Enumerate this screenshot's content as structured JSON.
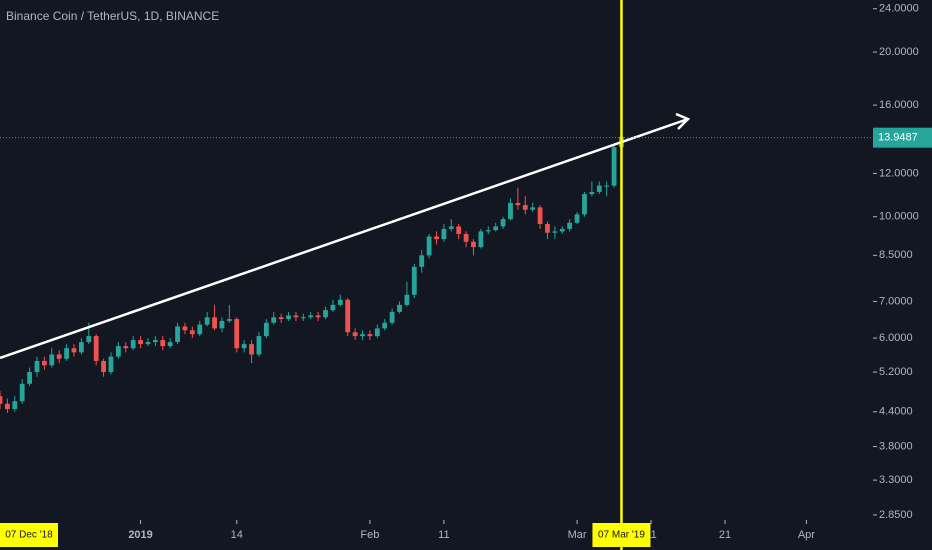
{
  "chart_data": {
    "type": "candlestick",
    "title": "Binance Coin / TetherUS, 1D, BINANCE",
    "x": [
      "2018-12-13",
      "2018-12-14",
      "2018-12-15",
      "2018-12-16",
      "2018-12-17",
      "2018-12-18",
      "2018-12-19",
      "2018-12-20",
      "2018-12-21",
      "2018-12-22",
      "2018-12-23",
      "2018-12-24",
      "2018-12-25",
      "2018-12-26",
      "2018-12-27",
      "2018-12-28",
      "2018-12-29",
      "2018-12-30",
      "2018-12-31",
      "2019-01-01",
      "2019-01-02",
      "2019-01-03",
      "2019-01-04",
      "2019-01-05",
      "2019-01-06",
      "2019-01-07",
      "2019-01-08",
      "2019-01-09",
      "2019-01-10",
      "2019-01-11",
      "2019-01-12",
      "2019-01-13",
      "2019-01-14",
      "2019-01-15",
      "2019-01-16",
      "2019-01-17",
      "2019-01-18",
      "2019-01-19",
      "2019-01-20",
      "2019-01-21",
      "2019-01-22",
      "2019-01-23",
      "2019-01-24",
      "2019-01-25",
      "2019-01-26",
      "2019-01-27",
      "2019-01-28",
      "2019-01-29",
      "2019-01-30",
      "2019-01-31",
      "2019-02-01",
      "2019-02-02",
      "2019-02-03",
      "2019-02-04",
      "2019-02-05",
      "2019-02-06",
      "2019-02-07",
      "2019-02-08",
      "2019-02-09",
      "2019-02-10",
      "2019-02-11",
      "2019-02-12",
      "2019-02-13",
      "2019-02-14",
      "2019-02-15",
      "2019-02-16",
      "2019-02-17",
      "2019-02-18",
      "2019-02-19",
      "2019-02-20",
      "2019-02-21",
      "2019-02-22",
      "2019-02-23",
      "2019-02-24",
      "2019-02-25",
      "2019-02-26",
      "2019-02-27",
      "2019-02-28",
      "2019-03-01",
      "2019-03-02",
      "2019-03-03",
      "2019-03-04",
      "2019-03-05",
      "2019-03-06",
      "2019-03-07"
    ],
    "open": [
      4.7,
      4.55,
      4.45,
      4.6,
      4.95,
      5.2,
      5.45,
      5.35,
      5.6,
      5.5,
      5.75,
      5.65,
      5.9,
      6.05,
      5.45,
      5.2,
      5.55,
      5.8,
      5.75,
      5.95,
      5.85,
      5.9,
      5.95,
      5.8,
      5.9,
      6.3,
      6.2,
      6.1,
      6.35,
      6.55,
      6.25,
      6.45,
      6.5,
      5.75,
      5.85,
      5.6,
      6.05,
      6.4,
      6.55,
      6.5,
      6.6,
      6.55,
      6.55,
      6.6,
      6.55,
      6.75,
      6.9,
      7.05,
      6.15,
      6.05,
      6.1,
      6.05,
      6.25,
      6.4,
      6.7,
      6.9,
      7.2,
      8.1,
      8.5,
      9.2,
      9.1,
      9.5,
      9.6,
      9.3,
      9.0,
      8.8,
      9.4,
      9.45,
      9.6,
      9.9,
      10.6,
      10.5,
      10.3,
      10.4,
      9.7,
      9.35,
      9.4,
      9.5,
      9.75,
      10.1,
      11.0,
      11.1,
      11.4,
      11.4,
      13.4
    ],
    "high": [
      4.8,
      4.65,
      4.7,
      5.05,
      5.3,
      5.55,
      5.55,
      5.75,
      5.7,
      5.85,
      5.85,
      6.0,
      6.4,
      6.1,
      5.5,
      5.65,
      5.9,
      5.9,
      6.05,
      6.05,
      6.0,
      6.05,
      6.05,
      6.0,
      6.4,
      6.4,
      6.3,
      6.45,
      6.7,
      6.9,
      6.55,
      6.9,
      6.55,
      5.95,
      5.95,
      6.15,
      6.5,
      6.7,
      6.65,
      6.7,
      6.7,
      6.65,
      6.7,
      6.7,
      6.85,
      7.05,
      7.2,
      7.1,
      6.25,
      6.2,
      6.2,
      6.35,
      6.5,
      6.8,
      7.0,
      7.6,
      8.2,
      8.7,
      9.3,
      9.4,
      9.7,
      9.9,
      9.7,
      9.4,
      9.1,
      9.5,
      9.6,
      9.75,
      10.0,
      10.8,
      11.3,
      10.9,
      10.6,
      10.5,
      9.8,
      9.6,
      9.6,
      9.9,
      10.2,
      11.1,
      11.6,
      11.6,
      11.6,
      13.5,
      14.2
    ],
    "low": [
      4.45,
      4.38,
      4.4,
      4.55,
      4.9,
      5.1,
      5.25,
      5.3,
      5.4,
      5.45,
      5.55,
      5.6,
      5.85,
      5.35,
      5.1,
      5.15,
      5.5,
      5.65,
      5.7,
      5.75,
      5.8,
      5.8,
      5.7,
      5.75,
      5.85,
      6.1,
      6.0,
      6.05,
      6.3,
      6.2,
      6.15,
      6.4,
      5.65,
      5.65,
      5.4,
      5.55,
      6.0,
      6.35,
      6.4,
      6.45,
      6.45,
      6.45,
      6.5,
      6.45,
      6.5,
      6.7,
      6.85,
      6.05,
      5.95,
      5.95,
      5.95,
      6.0,
      6.2,
      6.35,
      6.65,
      6.85,
      7.1,
      7.9,
      8.4,
      8.9,
      9.0,
      9.4,
      9.1,
      8.8,
      8.5,
      8.75,
      9.3,
      9.4,
      9.5,
      9.85,
      10.3,
      10.1,
      10.2,
      9.5,
      9.1,
      9.1,
      9.3,
      9.4,
      9.7,
      10.0,
      10.9,
      11.0,
      10.9,
      11.3,
      13.3
    ],
    "close": [
      4.55,
      4.45,
      4.6,
      4.95,
      5.2,
      5.45,
      5.35,
      5.6,
      5.5,
      5.75,
      5.65,
      5.9,
      6.05,
      5.45,
      5.2,
      5.55,
      5.8,
      5.75,
      5.95,
      5.85,
      5.9,
      5.95,
      5.8,
      5.9,
      6.3,
      6.2,
      6.1,
      6.35,
      6.55,
      6.25,
      6.45,
      6.5,
      5.75,
      5.85,
      5.6,
      6.05,
      6.4,
      6.55,
      6.5,
      6.6,
      6.55,
      6.55,
      6.6,
      6.55,
      6.75,
      6.9,
      7.05,
      6.15,
      6.05,
      6.1,
      6.05,
      6.25,
      6.4,
      6.7,
      6.9,
      7.2,
      8.1,
      8.5,
      9.2,
      9.1,
      9.5,
      9.6,
      9.3,
      9.0,
      8.8,
      9.4,
      9.45,
      9.6,
      9.9,
      10.6,
      10.5,
      10.3,
      10.4,
      9.7,
      9.35,
      9.4,
      9.5,
      9.75,
      10.1,
      11.0,
      11.1,
      11.4,
      11.4,
      13.4,
      14.0
    ],
    "up_color": "#26a69a",
    "down_color": "#ef5350",
    "log_scale": true,
    "ylim": [
      2.79,
      24.9
    ],
    "yticks": [
      {
        "value": 24,
        "label": "24.0000"
      },
      {
        "value": 20,
        "label": "20.0000"
      },
      {
        "value": 16,
        "label": "16.0000"
      },
      {
        "value": 12,
        "label": "12.0000"
      },
      {
        "value": 10,
        "label": "10.0000"
      },
      {
        "value": 8.5,
        "label": "8.5000"
      },
      {
        "value": 7,
        "label": "7.0000"
      },
      {
        "value": 6,
        "label": "6.0000"
      },
      {
        "value": 5.2,
        "label": "5.2000"
      },
      {
        "value": 4.4,
        "label": "4.4000"
      },
      {
        "value": 3.8,
        "label": "3.8000"
      },
      {
        "value": 3.3,
        "label": "3.3000"
      },
      {
        "value": 2.85,
        "label": "2.8500"
      }
    ],
    "xlim": [
      "2018-12-13",
      "2019-04-10"
    ],
    "xticks": [
      {
        "value": "2019-01-01",
        "label": "2019"
      },
      {
        "value": "2019-01-14",
        "label": "14"
      },
      {
        "value": "2019-02-01",
        "label": "Feb"
      },
      {
        "value": "2019-02-11",
        "label": "11"
      },
      {
        "value": "2019-03-01",
        "label": "Mar"
      },
      {
        "value": "2019-03-11",
        "label": "11"
      },
      {
        "value": "2019-03-21",
        "label": "21"
      },
      {
        "value": "2019-04-01",
        "label": "Apr"
      }
    ],
    "last_price": 13.9487,
    "highlight_dates": [
      {
        "value": "2018-12-07",
        "label": "07 Dec '18"
      },
      {
        "value": "2019-03-07",
        "label": "07 Mar '19"
      }
    ]
  }
}
